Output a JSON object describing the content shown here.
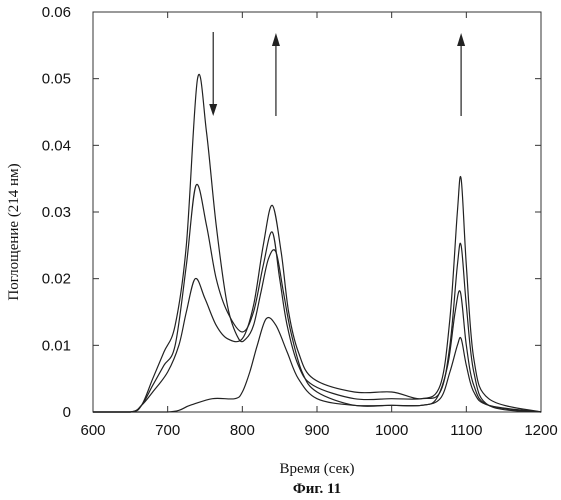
{
  "chart_data": {
    "type": "line",
    "xlabel": "Время (сек)",
    "ylabel": "Поглощение (214 нм)",
    "caption": "Фиг. 11",
    "xlim": [
      600,
      1200
    ],
    "ylim": [
      0,
      0.06
    ],
    "x_ticks": [
      "600",
      "700",
      "800",
      "900",
      "1000",
      "1100",
      "1200"
    ],
    "y_ticks": [
      "0",
      "0.01",
      "0.02",
      "0.03",
      "0.04",
      "0.05",
      "0.06"
    ],
    "grid": false,
    "line_color": "#222222",
    "arrows": [
      {
        "x": 761,
        "direction": "down"
      },
      {
        "x": 845,
        "direction": "up"
      },
      {
        "x": 1093,
        "direction": "up"
      }
    ],
    "series": [
      {
        "points": [
          [
            600,
            0
          ],
          [
            650,
            0
          ],
          [
            665,
            0.001
          ],
          [
            680,
            0.005
          ],
          [
            695,
            0.009
          ],
          [
            710,
            0.013
          ],
          [
            725,
            0.025
          ],
          [
            740,
            0.05
          ],
          [
            752,
            0.042
          ],
          [
            765,
            0.028
          ],
          [
            780,
            0.016
          ],
          [
            795,
            0.011
          ],
          [
            805,
            0.011
          ],
          [
            815,
            0.013
          ],
          [
            825,
            0.018
          ],
          [
            835,
            0.023
          ],
          [
            845,
            0.024
          ],
          [
            855,
            0.018
          ],
          [
            865,
            0.012
          ],
          [
            880,
            0.006
          ],
          [
            900,
            0.003
          ],
          [
            950,
            0.001
          ],
          [
            1000,
            0.001
          ],
          [
            1040,
            0.001
          ],
          [
            1060,
            0.002
          ],
          [
            1075,
            0.007
          ],
          [
            1085,
            0.015
          ],
          [
            1092,
            0.018
          ],
          [
            1100,
            0.01
          ],
          [
            1110,
            0.004
          ],
          [
            1130,
            0.001
          ],
          [
            1200,
            0
          ]
        ]
      },
      {
        "points": [
          [
            600,
            0
          ],
          [
            650,
            0
          ],
          [
            665,
            0.001
          ],
          [
            680,
            0.004
          ],
          [
            695,
            0.007
          ],
          [
            710,
            0.01
          ],
          [
            725,
            0.022
          ],
          [
            738,
            0.034
          ],
          [
            752,
            0.028
          ],
          [
            765,
            0.02
          ],
          [
            780,
            0.015
          ],
          [
            800,
            0.012
          ],
          [
            815,
            0.015
          ],
          [
            828,
            0.022
          ],
          [
            840,
            0.027
          ],
          [
            850,
            0.02
          ],
          [
            860,
            0.013
          ],
          [
            875,
            0.007
          ],
          [
            895,
            0.004
          ],
          [
            950,
            0.002
          ],
          [
            1000,
            0.002
          ],
          [
            1040,
            0.002
          ],
          [
            1065,
            0.003
          ],
          [
            1078,
            0.01
          ],
          [
            1088,
            0.022
          ],
          [
            1093,
            0.025
          ],
          [
            1100,
            0.016
          ],
          [
            1110,
            0.006
          ],
          [
            1130,
            0.001
          ],
          [
            1200,
            0
          ]
        ]
      },
      {
        "points": [
          [
            600,
            0
          ],
          [
            650,
            0
          ],
          [
            665,
            0.001
          ],
          [
            680,
            0.003
          ],
          [
            700,
            0.006
          ],
          [
            715,
            0.01
          ],
          [
            725,
            0.015
          ],
          [
            737,
            0.02
          ],
          [
            750,
            0.017
          ],
          [
            765,
            0.013
          ],
          [
            780,
            0.011
          ],
          [
            800,
            0.011
          ],
          [
            815,
            0.016
          ],
          [
            828,
            0.025
          ],
          [
            840,
            0.031
          ],
          [
            852,
            0.024
          ],
          [
            862,
            0.015
          ],
          [
            875,
            0.009
          ],
          [
            895,
            0.005
          ],
          [
            950,
            0.003
          ],
          [
            1000,
            0.003
          ],
          [
            1040,
            0.002
          ],
          [
            1065,
            0.004
          ],
          [
            1078,
            0.014
          ],
          [
            1088,
            0.03
          ],
          [
            1093,
            0.035
          ],
          [
            1100,
            0.022
          ],
          [
            1110,
            0.008
          ],
          [
            1130,
            0.002
          ],
          [
            1200,
            0
          ]
        ]
      },
      {
        "points": [
          [
            600,
            0
          ],
          [
            700,
            0
          ],
          [
            730,
            0.001
          ],
          [
            760,
            0.002
          ],
          [
            790,
            0.002
          ],
          [
            800,
            0.003
          ],
          [
            810,
            0.006
          ],
          [
            820,
            0.01
          ],
          [
            832,
            0.014
          ],
          [
            845,
            0.013
          ],
          [
            860,
            0.009
          ],
          [
            875,
            0.005
          ],
          [
            900,
            0.002
          ],
          [
            950,
            0.001
          ],
          [
            1000,
            0.001
          ],
          [
            1040,
            0.001
          ],
          [
            1065,
            0.002
          ],
          [
            1078,
            0.006
          ],
          [
            1088,
            0.01
          ],
          [
            1093,
            0.011
          ],
          [
            1100,
            0.007
          ],
          [
            1110,
            0.003
          ],
          [
            1130,
            0.001
          ],
          [
            1200,
            0
          ]
        ]
      }
    ]
  }
}
